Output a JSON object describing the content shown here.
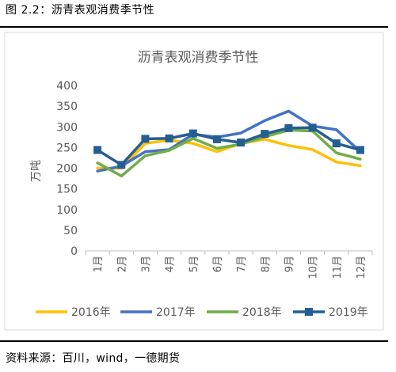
{
  "figure_label": "图 2.2：沥青表观消费季节性",
  "source_text": "资料来源：百川，wind，一德期货",
  "chart_data": {
    "type": "line",
    "title": "沥青表观消费季节性",
    "ylabel": "万吨",
    "xlabel": "",
    "categories": [
      "1月",
      "2月",
      "3月",
      "4月",
      "5月",
      "6月",
      "7月",
      "8月",
      "9月",
      "10月",
      "11月",
      "12月"
    ],
    "ylim": [
      0,
      400
    ],
    "yticks": [
      0,
      50,
      100,
      150,
      200,
      250,
      300,
      350,
      400
    ],
    "grid": false,
    "legend_position": "bottom",
    "series": [
      {
        "name": "2016年",
        "color": "#FFC000",
        "marker": "none",
        "values": [
          200,
          200,
          260,
          268,
          260,
          240,
          260,
          270,
          255,
          245,
          215,
          206
        ]
      },
      {
        "name": "2017年",
        "color": "#4472C4",
        "marker": "none",
        "values": [
          193,
          205,
          240,
          245,
          282,
          275,
          285,
          315,
          338,
          302,
          293,
          240
        ]
      },
      {
        "name": "2018年",
        "color": "#70AD47",
        "marker": "none",
        "values": [
          213,
          181,
          230,
          243,
          272,
          248,
          258,
          276,
          292,
          290,
          237,
          222
        ]
      },
      {
        "name": "2019年",
        "color": "#255E91",
        "marker": "square",
        "values": [
          244,
          208,
          271,
          272,
          284,
          270,
          262,
          283,
          297,
          298,
          260,
          244
        ]
      }
    ]
  }
}
